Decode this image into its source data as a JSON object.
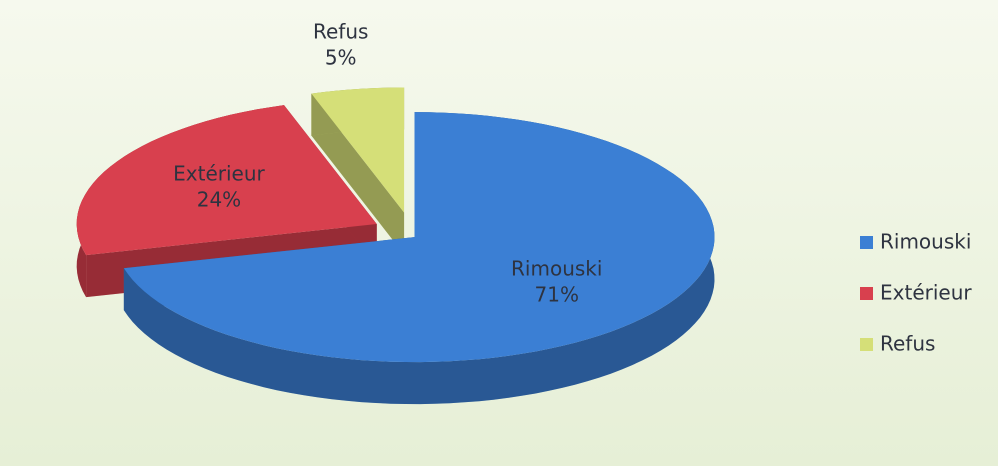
{
  "chart_data": {
    "type": "pie",
    "categories": [
      "Rimouski",
      "Extérieur",
      "Refus"
    ],
    "values": [
      71,
      24,
      5
    ],
    "value_labels": [
      "71%",
      "24%",
      "5%"
    ],
    "colors": [
      "#3b7fd4",
      "#d8404e",
      "#d5df78"
    ],
    "legend": "right"
  }
}
